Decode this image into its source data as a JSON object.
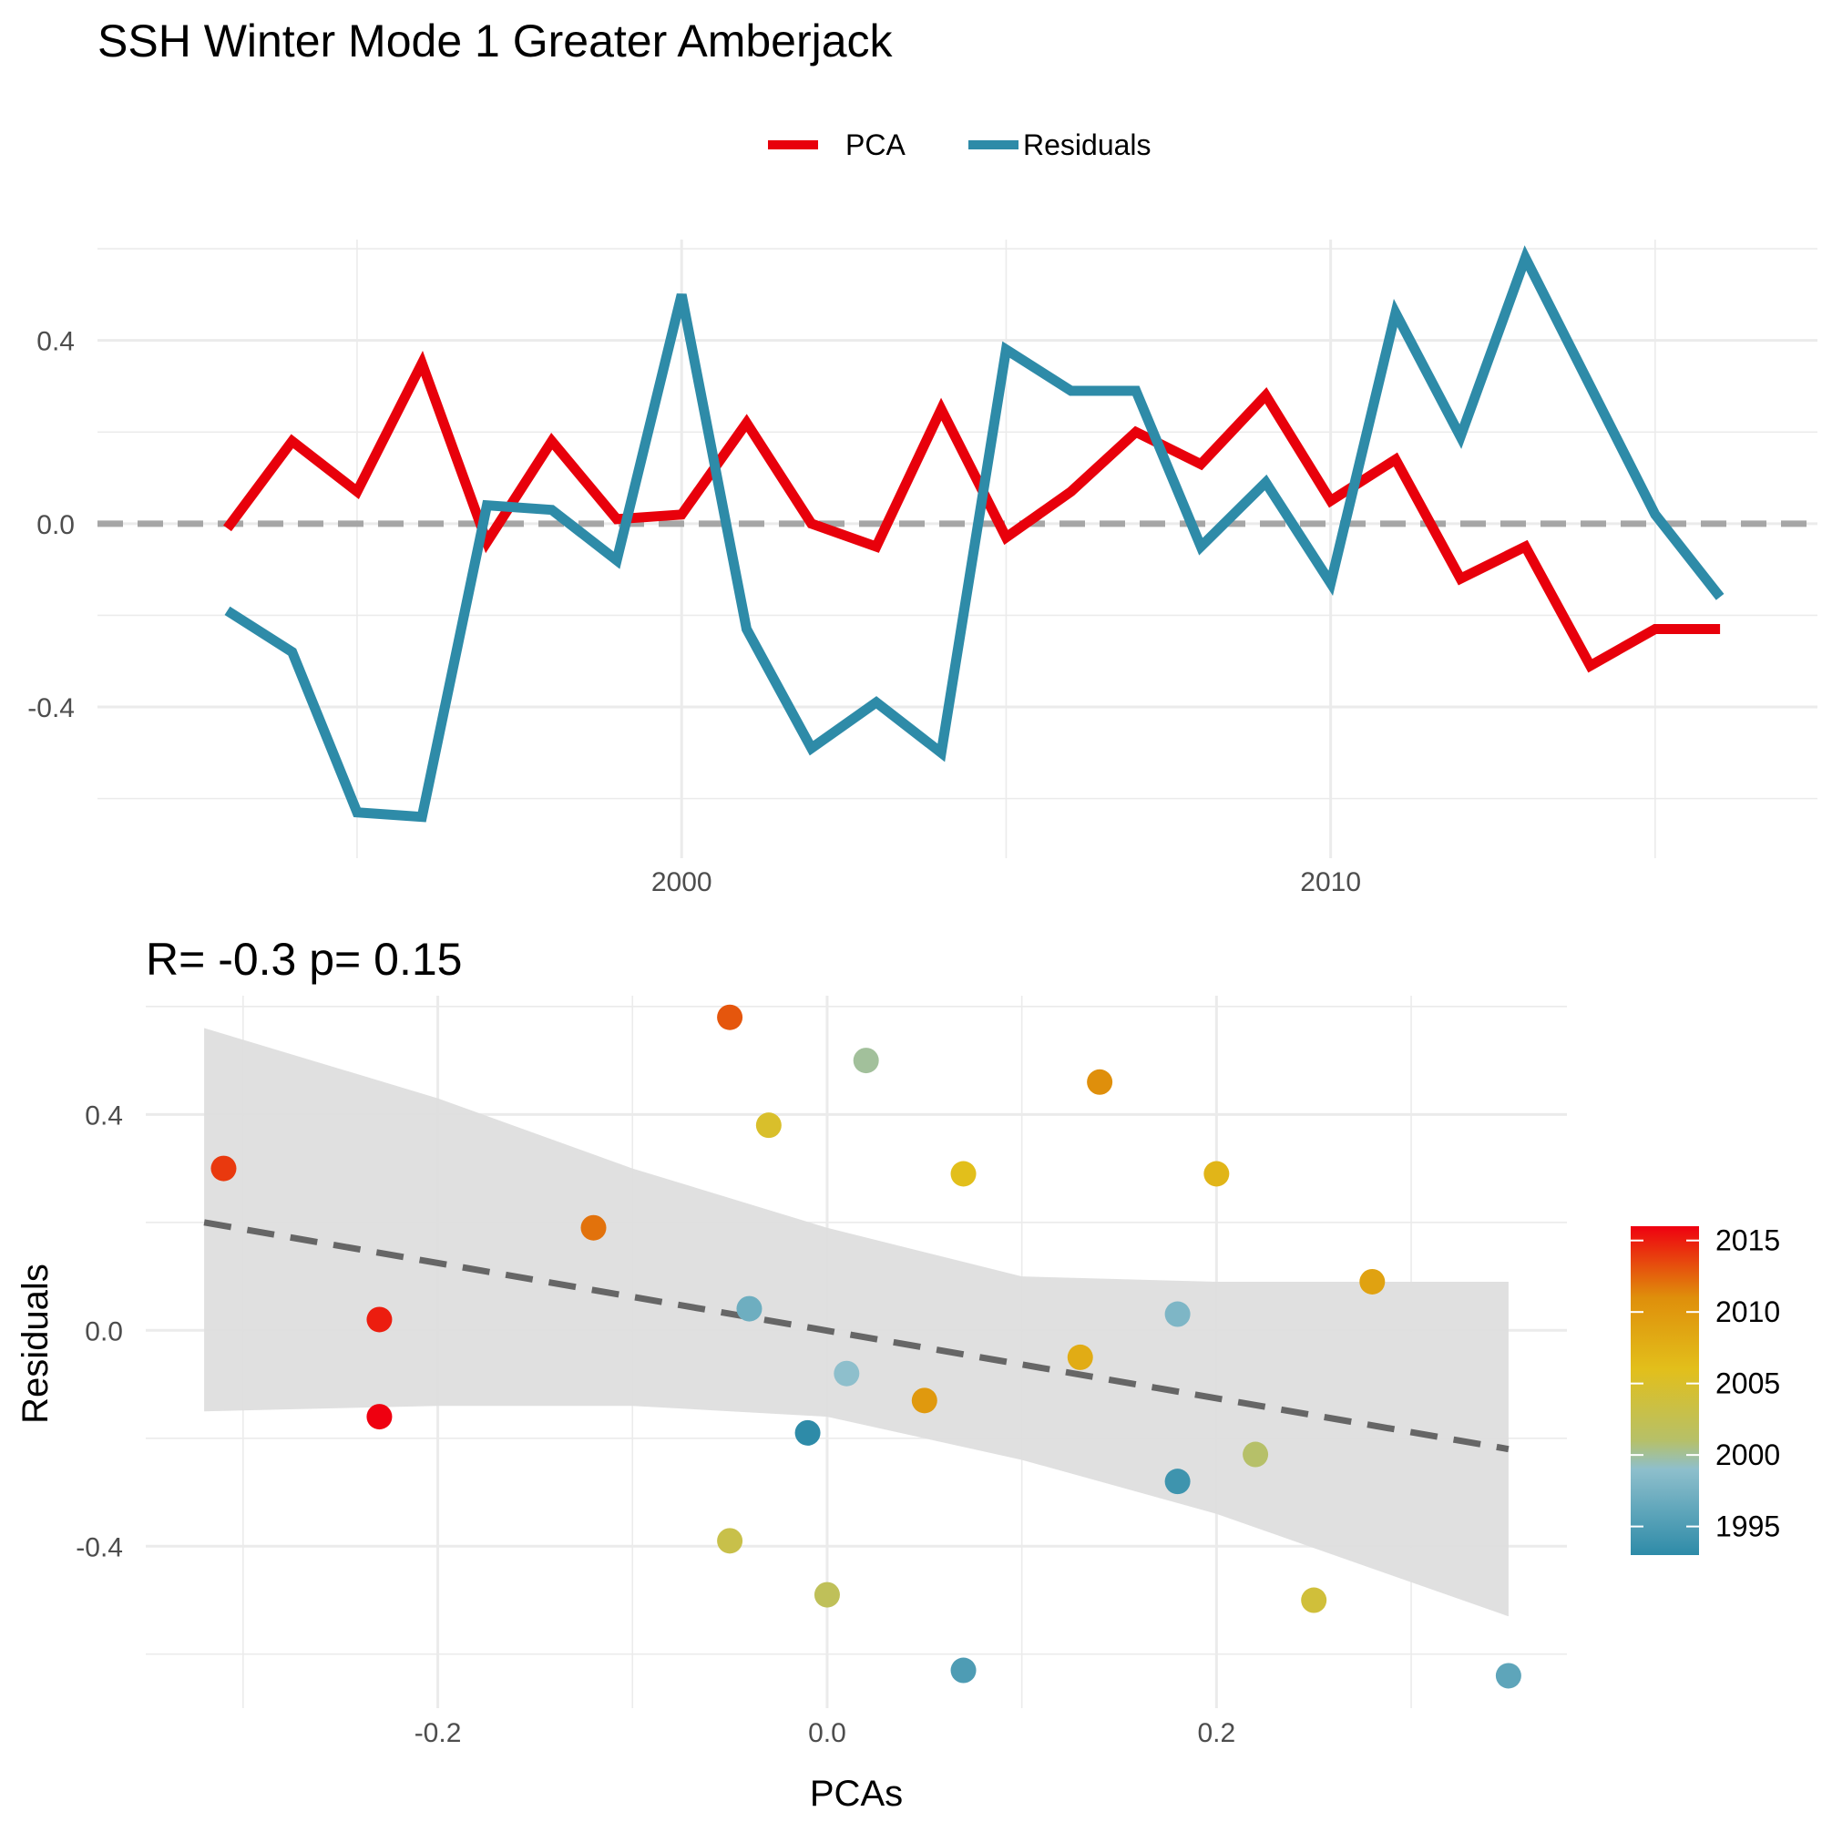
{
  "title": "SSH Winter Mode 1 Greater Amberjack",
  "chart_data": [
    {
      "type": "line",
      "legend": {
        "position": "top",
        "entries": [
          "PCA",
          "Residuals"
        ]
      },
      "x": [
        1993,
        1994,
        1995,
        1996,
        1997,
        1998,
        1999,
        2000,
        2001,
        2002,
        2003,
        2004,
        2005,
        2006,
        2007,
        2008,
        2009,
        2010,
        2011,
        2012,
        2013,
        2014,
        2015,
        2016
      ],
      "series": [
        {
          "name": "PCA",
          "color": "#e8000b",
          "values": [
            -0.01,
            0.18,
            0.07,
            0.35,
            -0.04,
            0.18,
            0.01,
            0.02,
            0.22,
            0.0,
            -0.05,
            0.25,
            -0.03,
            0.07,
            0.2,
            0.13,
            0.28,
            0.05,
            0.14,
            -0.12,
            -0.05,
            -0.31,
            -0.23,
            -0.23
          ]
        },
        {
          "name": "Residuals",
          "color": "#2e8ba8",
          "values": [
            -0.19,
            -0.28,
            -0.63,
            -0.64,
            0.04,
            0.03,
            -0.08,
            0.5,
            -0.23,
            -0.49,
            -0.39,
            -0.5,
            0.38,
            0.29,
            0.29,
            -0.05,
            0.09,
            -0.13,
            0.46,
            0.19,
            0.58,
            0.3,
            0.02,
            -0.16
          ]
        }
      ],
      "reference_line": {
        "y": 0,
        "color": "#a6a6a6",
        "style": "dashed"
      },
      "xlim": [
        1991,
        2017.5
      ],
      "ylim": [
        -0.73,
        0.62
      ],
      "x_ticks": [
        2000,
        2010
      ],
      "x_tick_labels": [
        "2000",
        "2010"
      ],
      "y_ticks": [
        -0.4,
        0.0,
        0.4
      ],
      "y_tick_labels": [
        "-0.4",
        "0.0",
        "0.4"
      ],
      "grid": true
    },
    {
      "type": "scatter",
      "title": "R= -0.3  p= 0.15",
      "xlabel": "PCAs",
      "ylabel": "Residuals",
      "xlim": [
        -0.35,
        0.38
      ],
      "ylim": [
        -0.7,
        0.62
      ],
      "x_ticks": [
        -0.2,
        0.0,
        0.2
      ],
      "x_tick_labels": [
        "-0.2",
        "0.0",
        "0.2"
      ],
      "y_ticks": [
        -0.4,
        0.0,
        0.4
      ],
      "y_tick_labels": [
        "-0.4",
        "0.0",
        "0.4"
      ],
      "grid": true,
      "points": [
        {
          "x": -0.01,
          "y": -0.19,
          "year": 1993
        },
        {
          "x": 0.18,
          "y": -0.28,
          "year": 1994
        },
        {
          "x": 0.07,
          "y": -0.63,
          "year": 1995
        },
        {
          "x": 0.35,
          "y": -0.64,
          "year": 1996
        },
        {
          "x": -0.04,
          "y": 0.04,
          "year": 1997
        },
        {
          "x": 0.18,
          "y": 0.03,
          "year": 1998
        },
        {
          "x": 0.01,
          "y": -0.08,
          "year": 1999
        },
        {
          "x": 0.02,
          "y": 0.5,
          "year": 2000
        },
        {
          "x": 0.22,
          "y": -0.23,
          "year": 2001
        },
        {
          "x": 0.0,
          "y": -0.49,
          "year": 2002
        },
        {
          "x": -0.05,
          "y": -0.39,
          "year": 2003
        },
        {
          "x": 0.25,
          "y": -0.5,
          "year": 2004
        },
        {
          "x": -0.03,
          "y": 0.38,
          "year": 2005
        },
        {
          "x": 0.07,
          "y": 0.29,
          "year": 2006
        },
        {
          "x": 0.2,
          "y": 0.29,
          "year": 2007
        },
        {
          "x": 0.13,
          "y": -0.05,
          "year": 2008
        },
        {
          "x": 0.28,
          "y": 0.09,
          "year": 2009
        },
        {
          "x": 0.05,
          "y": -0.13,
          "year": 2010
        },
        {
          "x": 0.14,
          "y": 0.46,
          "year": 2011
        },
        {
          "x": -0.12,
          "y": 0.19,
          "year": 2012
        },
        {
          "x": -0.05,
          "y": 0.58,
          "year": 2013
        },
        {
          "x": -0.31,
          "y": 0.3,
          "year": 2014
        },
        {
          "x": -0.23,
          "y": 0.02,
          "year": 2015
        },
        {
          "x": -0.23,
          "y": -0.16,
          "year": 2016
        }
      ],
      "regression": {
        "x": [
          -0.32,
          0.35
        ],
        "y": [
          0.2,
          -0.22
        ],
        "color": "#666666",
        "style": "dashed",
        "ci_band": {
          "x": [
            -0.32,
            -0.2,
            -0.1,
            0.0,
            0.1,
            0.2,
            0.35
          ],
          "upper": [
            0.56,
            0.43,
            0.3,
            0.19,
            0.1,
            0.09,
            0.09
          ],
          "lower": [
            -0.15,
            -0.14,
            -0.14,
            -0.16,
            -0.24,
            -0.34,
            -0.53
          ],
          "color": "#dedede"
        }
      },
      "colorbar": {
        "title": "",
        "position": "right",
        "range": [
          1993,
          2016
        ],
        "ticks": [
          1995,
          2000,
          2005,
          2010,
          2015
        ],
        "tick_labels": [
          "1995",
          "2000",
          "2005",
          "2010",
          "2015"
        ],
        "stops": [
          {
            "year": 1993,
            "color": "#2e8ba8"
          },
          {
            "year": 1999,
            "color": "#8ebfcc"
          },
          {
            "year": 2001,
            "color": "#b6c069"
          },
          {
            "year": 2006,
            "color": "#e2bf1b"
          },
          {
            "year": 2011,
            "color": "#df8f0b"
          },
          {
            "year": 2016,
            "color": "#ef0010"
          }
        ]
      }
    }
  ]
}
